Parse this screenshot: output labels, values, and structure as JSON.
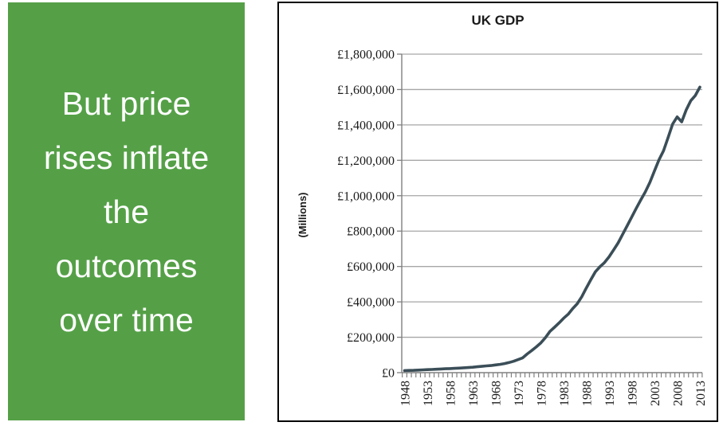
{
  "panel": {
    "lines": [
      "But price",
      "rises inflate",
      "the",
      "outcomes",
      "over time"
    ],
    "bg_color": "#55a047",
    "text_color": "#ffffff"
  },
  "chart_frame": {
    "border_color": "#000000"
  },
  "chart_data": {
    "type": "line",
    "title": "UK GDP",
    "ylabel": "(Millions)",
    "xlabel": "",
    "ylim": [
      0,
      1800000
    ],
    "grid": true,
    "legend": "none",
    "y_tick_values": [
      0,
      200000,
      400000,
      600000,
      800000,
      1000000,
      1200000,
      1400000,
      1600000,
      1800000
    ],
    "y_tick_labels": [
      "£0",
      "£200,000",
      "£400,000",
      "£600,000",
      "£800,000",
      "£1,000,000",
      "£1,200,000",
      "£1,400,000",
      "£1,600,000",
      "£1,800,000"
    ],
    "x_tick_labels": [
      "1948",
      "1953",
      "1958",
      "1963",
      "1968",
      "1973",
      "1978",
      "1983",
      "1988",
      "1993",
      "1998",
      "2003",
      "2008",
      "2013"
    ],
    "years": [
      1948,
      1949,
      1950,
      1951,
      1952,
      1953,
      1954,
      1955,
      1956,
      1957,
      1958,
      1959,
      1960,
      1961,
      1962,
      1963,
      1964,
      1965,
      1966,
      1967,
      1968,
      1969,
      1970,
      1971,
      1972,
      1973,
      1974,
      1975,
      1976,
      1977,
      1978,
      1979,
      1980,
      1981,
      1982,
      1983,
      1984,
      1985,
      1986,
      1987,
      1988,
      1989,
      1990,
      1991,
      1992,
      1993,
      1994,
      1995,
      1996,
      1997,
      1998,
      1999,
      2000,
      2001,
      2002,
      2003,
      2004,
      2005,
      2006,
      2007,
      2008,
      2009,
      2010,
      2011,
      2012,
      2013
    ],
    "values": [
      11921,
      12618,
      13162,
      14585,
      15905,
      16942,
      17993,
      19238,
      20860,
      22069,
      22900,
      24220,
      25794,
      27481,
      28722,
      30655,
      33297,
      35716,
      38093,
      40178,
      43751,
      46946,
      51515,
      57374,
      64340,
      74005,
      83793,
      105773,
      125122,
      145663,
      168118,
      197438,
      233184,
      256279,
      280786,
      307322,
      329913,
      361758,
      389149,
      428665,
      478352,
      525274,
      570283,
      598664,
      622080,
      654196,
      692987,
      733266,
      781726,
      830094,
      879102,
      928730,
      976533,
      1021828,
      1075564,
      1139746,
      1202956,
      1254058,
      1328363,
      1404845,
      1445580,
      1417355,
      1485615,
      1537316,
      1566297,
      1613704
    ],
    "line_color": "#3b4e58",
    "gridline_color": "#a6a6a6",
    "axis_color": "#808080",
    "tick_label_color": "#1a1a1a"
  }
}
